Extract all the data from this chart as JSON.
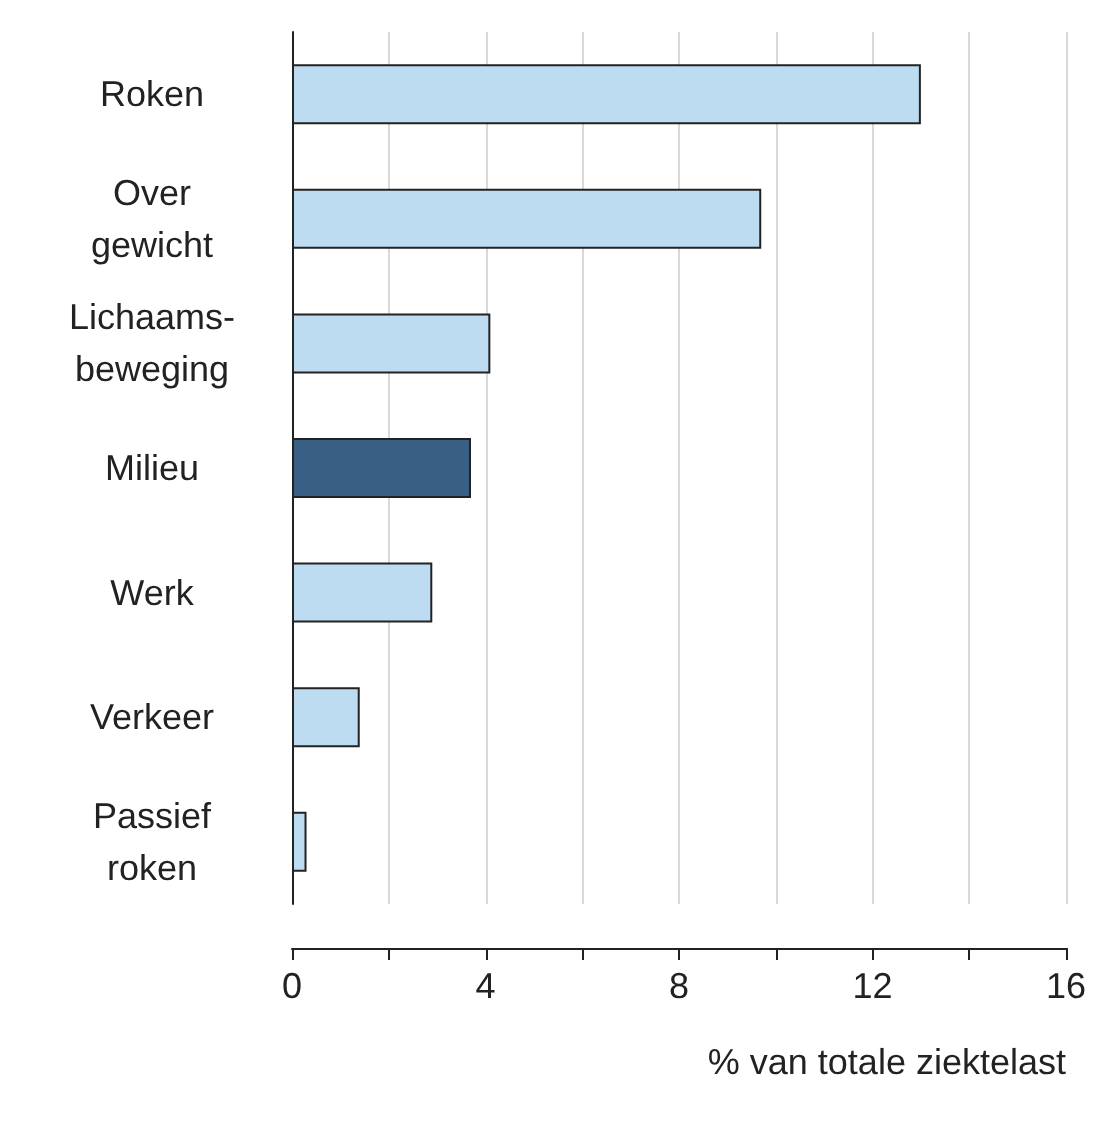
{
  "chart_data": {
    "type": "bar",
    "orientation": "horizontal",
    "xlabel": "% van totale ziektelast",
    "categories": [
      "Roken",
      "Over\ngewicht",
      "Lichaams-\nbeweging",
      "Milieu",
      "Werk",
      "Verkeer",
      "Passief\nroken"
    ],
    "values": [
      13.0,
      9.7,
      4.1,
      3.7,
      2.9,
      1.4,
      0.3
    ],
    "colors": [
      "#bddcf2",
      "#bddcf2",
      "#bddcf2",
      "#3a5f85",
      "#bddcf2",
      "#bddcf2",
      "#bddcf2"
    ],
    "xlim": [
      0,
      16
    ],
    "xticks": [
      0,
      {
        "value": 2,
        "label": null
      },
      4,
      {
        "value": 6,
        "label": null
      },
      8,
      {
        "value": 10,
        "label": null
      },
      12,
      {
        "value": 14,
        "label": null
      },
      16
    ],
    "grid": "x"
  }
}
